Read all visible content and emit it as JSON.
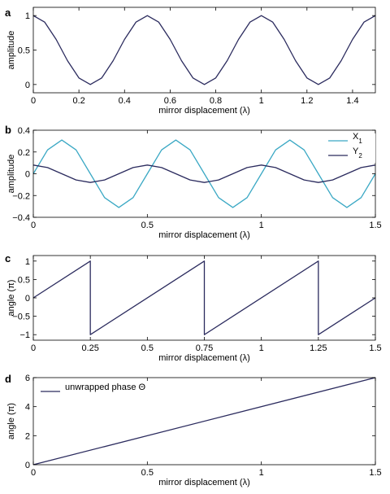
{
  "colors": {
    "dark_line": "#2b2b5e",
    "cyan_line": "#3aa8c4",
    "axis": "#000000"
  },
  "chart_data": [
    {
      "panel": "a",
      "type": "line",
      "xlabel": "mirror displacement (λ)",
      "ylabel": "amplitude",
      "xlim": [
        0,
        1.5
      ],
      "ylim": [
        -0.12,
        1.12
      ],
      "xticks": [
        0,
        0.2,
        0.4,
        0.6,
        0.8,
        1,
        1.2,
        1.4
      ],
      "xtick_labels": [
        "0",
        "0.2",
        "0.4",
        "0.6",
        "0.8",
        "1",
        "1.2",
        "1.4"
      ],
      "yticks": [
        0,
        0.5,
        1
      ],
      "ytick_labels": [
        "0",
        "0.5",
        "1"
      ],
      "grid": false,
      "series": [
        {
          "color": "#2b2b5e",
          "x": [
            0,
            0.05,
            0.1,
            0.15,
            0.2,
            0.25,
            0.3,
            0.35,
            0.4,
            0.45,
            0.5,
            0.55,
            0.6,
            0.65,
            0.7,
            0.75,
            0.8,
            0.85,
            0.9,
            0.95,
            1.0,
            1.05,
            1.1,
            1.15,
            1.2,
            1.25,
            1.3,
            1.35,
            1.4,
            1.45,
            1.5
          ],
          "y": [
            1,
            0.905,
            0.655,
            0.345,
            0.095,
            0,
            0.095,
            0.345,
            0.655,
            0.905,
            1,
            0.905,
            0.655,
            0.345,
            0.095,
            0,
            0.095,
            0.345,
            0.655,
            0.905,
            1,
            0.905,
            0.655,
            0.345,
            0.095,
            0,
            0.095,
            0.345,
            0.655,
            0.905,
            1
          ]
        }
      ]
    },
    {
      "panel": "b",
      "type": "line",
      "xlabel": "mirror displacement (λ)",
      "ylabel": "amplitude",
      "xlim": [
        0,
        1.5
      ],
      "ylim": [
        -0.4,
        0.4
      ],
      "xticks": [
        0,
        0.5,
        1,
        1.5
      ],
      "xtick_labels": [
        "0",
        "0.5",
        "1",
        "1.5"
      ],
      "yticks": [
        -0.4,
        -0.2,
        0,
        0.2,
        0.4
      ],
      "ytick_labels": [
        "−0.4",
        "−0.2",
        "0",
        "0.2",
        "0.4"
      ],
      "grid": false,
      "legend": {
        "position": "top-right",
        "entries": [
          {
            "label": "X",
            "sub": "1",
            "color": "#3aa8c4"
          },
          {
            "label": "Y",
            "sub": "2",
            "color": "#2b2b5e"
          }
        ]
      },
      "series": [
        {
          "name": "X1",
          "color": "#3aa8c4",
          "x": [
            0,
            0.0625,
            0.125,
            0.1875,
            0.25,
            0.3125,
            0.375,
            0.4375,
            0.5,
            0.5625,
            0.625,
            0.6875,
            0.75,
            0.8125,
            0.875,
            0.9375,
            1.0,
            1.0625,
            1.125,
            1.1875,
            1.25,
            1.3125,
            1.375,
            1.4375,
            1.5
          ],
          "y": [
            0,
            0.219,
            0.31,
            0.219,
            0,
            -0.219,
            -0.31,
            -0.219,
            0,
            0.219,
            0.31,
            0.219,
            0,
            -0.219,
            -0.31,
            -0.219,
            0,
            0.219,
            0.31,
            0.219,
            0,
            -0.219,
            -0.31,
            -0.219,
            0
          ]
        },
        {
          "name": "Y2",
          "color": "#2b2b5e",
          "x": [
            0,
            0.0625,
            0.125,
            0.1875,
            0.25,
            0.3125,
            0.375,
            0.4375,
            0.5,
            0.5625,
            0.625,
            0.6875,
            0.75,
            0.8125,
            0.875,
            0.9375,
            1.0,
            1.0625,
            1.125,
            1.1875,
            1.25,
            1.3125,
            1.375,
            1.4375,
            1.5
          ],
          "y": [
            0.08,
            0.057,
            0,
            -0.057,
            -0.08,
            -0.057,
            0,
            0.057,
            0.08,
            0.057,
            0,
            -0.057,
            -0.08,
            -0.057,
            0,
            0.057,
            0.08,
            0.057,
            0,
            -0.057,
            -0.08,
            -0.057,
            0,
            0.057,
            0.08
          ]
        }
      ]
    },
    {
      "panel": "c",
      "type": "line",
      "xlabel": "mirror displacement (λ)",
      "ylabel": "angle (π)",
      "xlim": [
        0,
        1.5
      ],
      "ylim": [
        -1.15,
        1.15
      ],
      "xticks": [
        0,
        0.25,
        0.5,
        0.75,
        1,
        1.25,
        1.5
      ],
      "xtick_labels": [
        "0",
        "0.25",
        "0.5",
        "0.75",
        "1",
        "1.25",
        "1.5"
      ],
      "yticks": [
        -1,
        -0.5,
        0,
        0.5,
        1
      ],
      "ytick_labels": [
        "−1",
        "−0.5",
        "0",
        "0.5",
        "1"
      ],
      "grid": false,
      "series": [
        {
          "color": "#2b2b5e",
          "x": [
            0,
            0.25,
            0.25,
            0.75,
            0.75,
            1.25,
            1.25,
            1.5
          ],
          "y": [
            0,
            1,
            -1,
            1,
            -1,
            1,
            -1,
            0
          ]
        }
      ]
    },
    {
      "panel": "d",
      "type": "line",
      "xlabel": "mirror displacement (λ)",
      "ylabel": "angle (π)",
      "xlim": [
        0,
        1.5
      ],
      "ylim": [
        0,
        6
      ],
      "xticks": [
        0,
        0.5,
        1,
        1.5
      ],
      "xtick_labels": [
        "0",
        "0.5",
        "1",
        "1.5"
      ],
      "yticks": [
        0,
        2,
        4,
        6
      ],
      "ytick_labels": [
        "0",
        "2",
        "4",
        "6"
      ],
      "grid": false,
      "legend": {
        "position": "top-left",
        "entries": [
          {
            "label": "unwrapped phase Θ",
            "color": "#2b2b5e"
          }
        ]
      },
      "series": [
        {
          "name": "unwrapped phase Θ",
          "color": "#2b2b5e",
          "x": [
            0,
            1.5
          ],
          "y": [
            0,
            6
          ]
        }
      ]
    }
  ]
}
